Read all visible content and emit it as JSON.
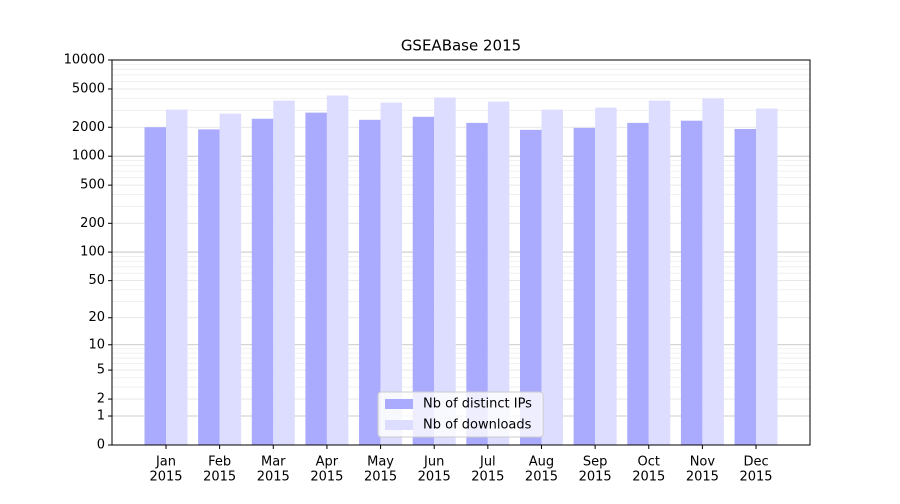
{
  "chart_data": {
    "type": "bar",
    "title": "GSEABase 2015",
    "categories": [
      [
        "Jan",
        "2015"
      ],
      [
        "Feb",
        "2015"
      ],
      [
        "Mar",
        "2015"
      ],
      [
        "Apr",
        "2015"
      ],
      [
        "May",
        "2015"
      ],
      [
        "Jun",
        "2015"
      ],
      [
        "Jul",
        "2015"
      ],
      [
        "Aug",
        "2015"
      ],
      [
        "Sep",
        "2015"
      ],
      [
        "Oct",
        "2015"
      ],
      [
        "Nov",
        "2015"
      ],
      [
        "Dec",
        "2015"
      ]
    ],
    "series": [
      {
        "name": "Nb of distinct IPs",
        "color": "#aaaaff",
        "values": [
          2000,
          1900,
          2450,
          2840,
          2390,
          2570,
          2220,
          1880,
          1970,
          2220,
          2340,
          1920
        ]
      },
      {
        "name": "Nb of downloads",
        "color": "#ddddff",
        "values": [
          3050,
          2770,
          3790,
          4280,
          3610,
          4080,
          3700,
          3050,
          3200,
          3790,
          3980,
          3130
        ]
      }
    ],
    "yscale": "log1p",
    "ylim": [
      0,
      10000
    ],
    "yticks": [
      0,
      1,
      2,
      5,
      10,
      20,
      50,
      100,
      200,
      500,
      1000,
      2000,
      5000,
      10000
    ],
    "grid": true,
    "legend": "lower center"
  }
}
